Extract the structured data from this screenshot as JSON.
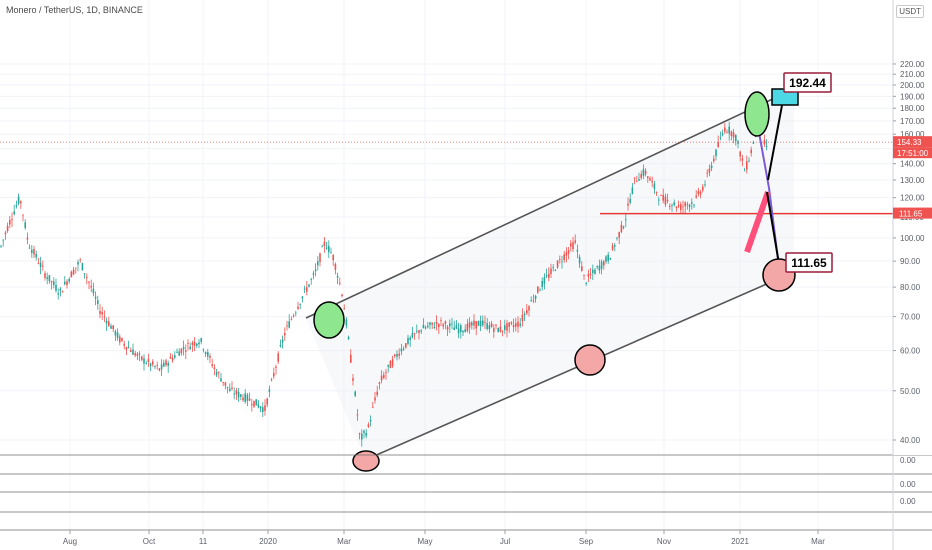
{
  "header": {
    "title": "Monero / TetherUS, 1D, BINANCE",
    "currency_badge": "USDT"
  },
  "price_axis": {
    "ticks": [
      "220.00",
      "210.00",
      "200.00",
      "190.00",
      "180.00",
      "170.00",
      "160.00",
      "150.00",
      "140.00",
      "130.00",
      "120.00",
      "110.00",
      "100.00",
      "90.00",
      "80.00",
      "70.00",
      "60.00",
      "50.00",
      "40.00"
    ],
    "last_price_label": "154.33",
    "countdown_label": "17:51:00",
    "level_label": "111.65"
  },
  "time_axis": {
    "labels": [
      "Aug",
      "Oct",
      "11",
      "2020",
      "Mar",
      "May",
      "Jul",
      "Sep",
      "Nov",
      "2021",
      "Mar"
    ]
  },
  "lower_panes": {
    "labels": [
      "0.00",
      "0.00",
      "0.00",
      "0"
    ]
  },
  "annotations": {
    "target_box_label": "192.44",
    "support_box_label": "111.65"
  },
  "colors": {
    "channel_line": "#555555",
    "support_line": "#e53935",
    "circle_green": "#8ee68e",
    "circle_red": "#f4a7a7",
    "target_box": "#4dd8e6",
    "candle_up": "#26a69a",
    "candle_down": "#ef5350",
    "last_price_tag": "#ef5350"
  },
  "chart_data": {
    "type": "candlestick",
    "symbol": "XMR/USDT",
    "interval": "1D",
    "y_scale": "log",
    "ylim": [
      35,
      230
    ],
    "x": [
      "2019-07",
      "2019-08",
      "2019-09",
      "2019-10",
      "2019-11",
      "2019-12",
      "2020-01",
      "2020-02",
      "2020-03",
      "2020-04",
      "2020-05",
      "2020-06",
      "2020-07",
      "2020-08",
      "2020-09",
      "2020-10",
      "2020-11",
      "2020-12",
      "2021-01",
      "2021-02"
    ],
    "close_approx": [
      92,
      88,
      72,
      58,
      63,
      48,
      60,
      92,
      45,
      58,
      66,
      67,
      70,
      80,
      88,
      105,
      120,
      150,
      165,
      154.33
    ],
    "last_price": 154.33,
    "horizontal_level": 111.65,
    "target_price": 192.44,
    "grid": true
  }
}
